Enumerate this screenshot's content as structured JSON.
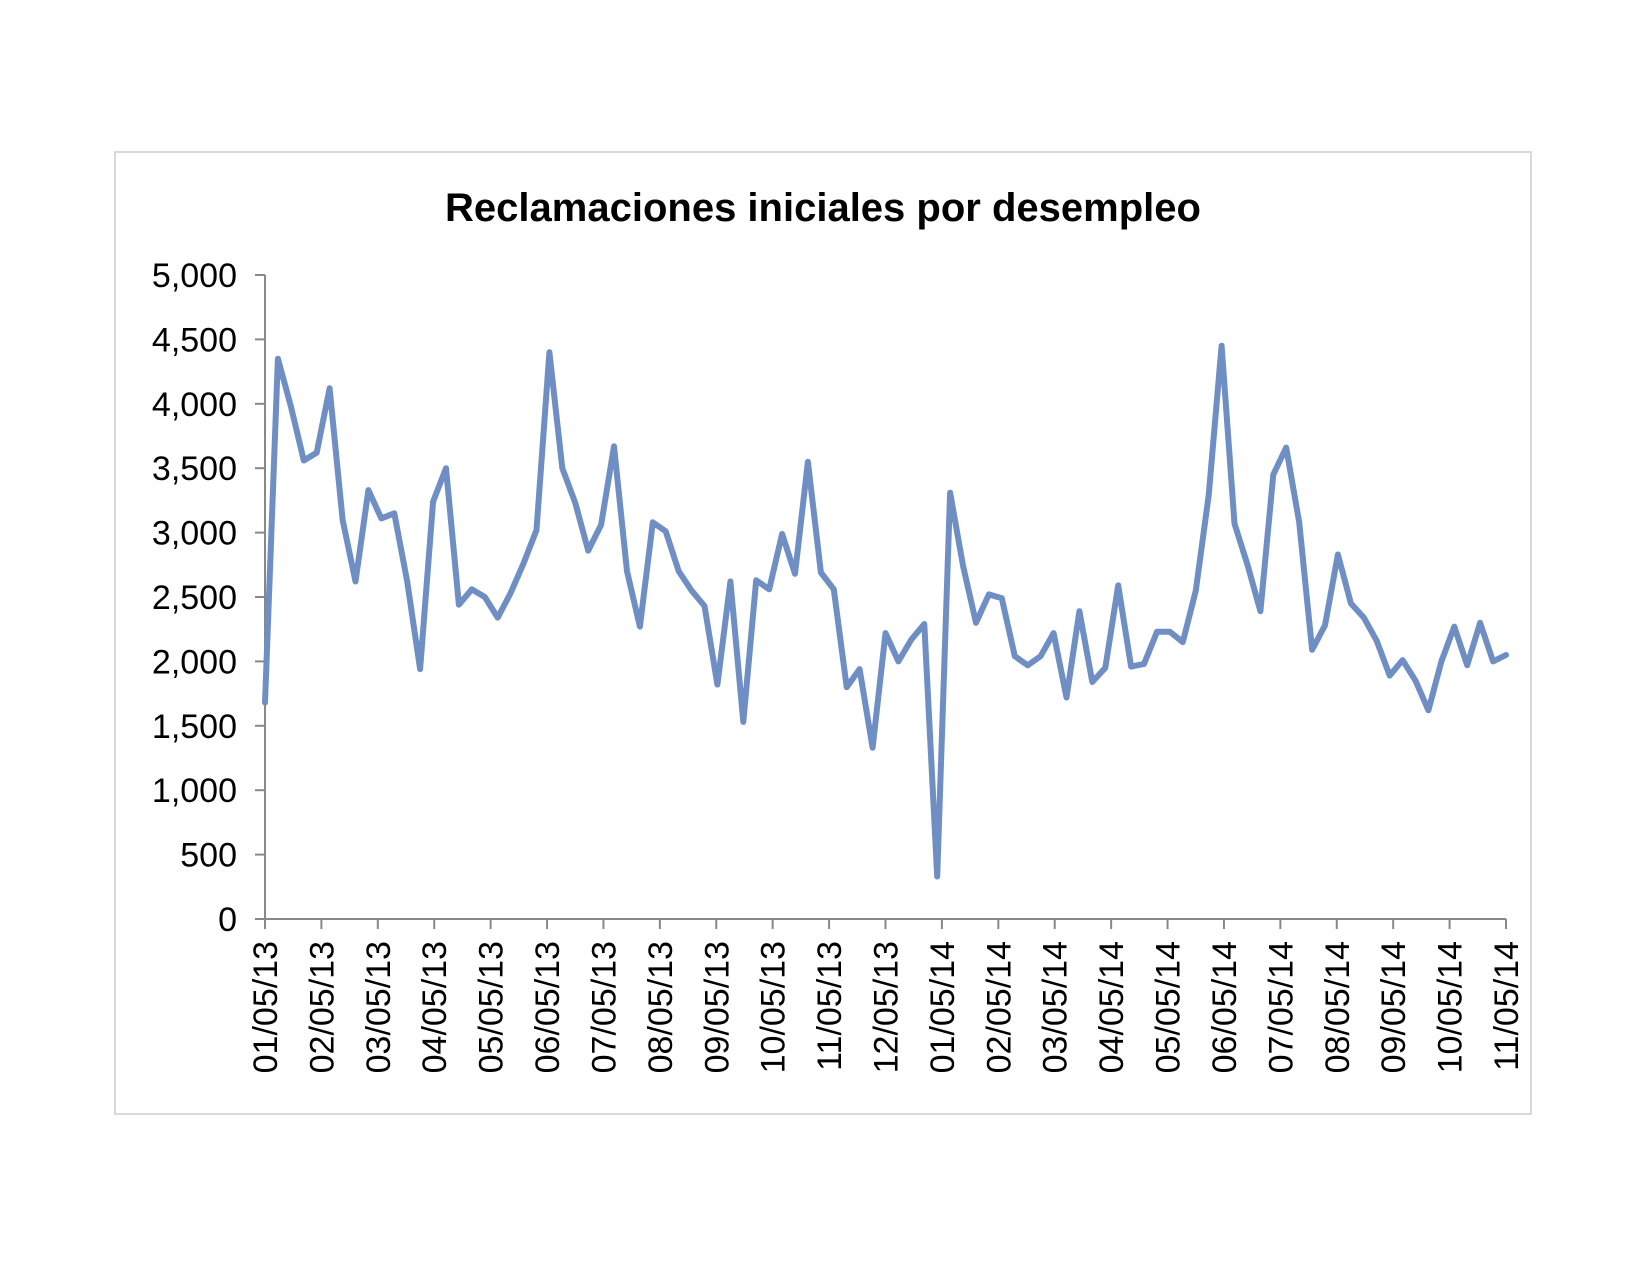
{
  "chart_data": {
    "type": "line",
    "title": "Reclamaciones iniciales por desempleo",
    "xlabel": "",
    "ylabel": "",
    "ylim": [
      0,
      5000
    ],
    "yticks": [
      "0",
      "500",
      "1,000",
      "1,500",
      "2,000",
      "2,500",
      "3,000",
      "3,500",
      "4,000",
      "4,500",
      "5,000"
    ],
    "xticks": [
      "01/05/13",
      "02/05/13",
      "03/05/13",
      "04/05/13",
      "05/05/13",
      "06/05/13",
      "07/05/13",
      "08/05/13",
      "09/05/13",
      "10/05/13",
      "11/05/13",
      "12/05/13",
      "01/05/14",
      "02/05/14",
      "03/05/14",
      "04/05/14",
      "05/05/14",
      "06/05/14",
      "07/05/14",
      "08/05/14",
      "09/05/14",
      "10/05/14",
      "11/05/14"
    ],
    "grid": false,
    "legend": "none",
    "line_color": "#6f8fc4",
    "series": [
      {
        "name": "",
        "values": [
          1680,
          4350,
          3980,
          3560,
          3620,
          4120,
          3100,
          2620,
          3330,
          3110,
          3150,
          2620,
          1940,
          3240,
          3500,
          2440,
          2560,
          2500,
          2340,
          2530,
          2760,
          3020,
          4400,
          3500,
          3230,
          2860,
          3060,
          3670,
          2700,
          2270,
          3080,
          3010,
          2700,
          2550,
          2430,
          1820,
          2620,
          1530,
          2630,
          2560,
          2990,
          2680,
          3550,
          2690,
          2560,
          1800,
          1940,
          1330,
          2220,
          2000,
          2170,
          2290,
          330,
          3310,
          2740,
          2300,
          2520,
          2490,
          2040,
          1970,
          2040,
          2220,
          1720,
          2390,
          1840,
          1950,
          2590,
          1960,
          1980,
          2230,
          2230,
          2150,
          2550,
          3290,
          4450,
          3070,
          2750,
          2390,
          3450,
          3660,
          3080,
          2090,
          2280,
          2830,
          2450,
          2340,
          2160,
          1890,
          2010,
          1850,
          1620,
          2000,
          2270,
          1970,
          2300,
          2000,
          2050
        ]
      }
    ]
  }
}
